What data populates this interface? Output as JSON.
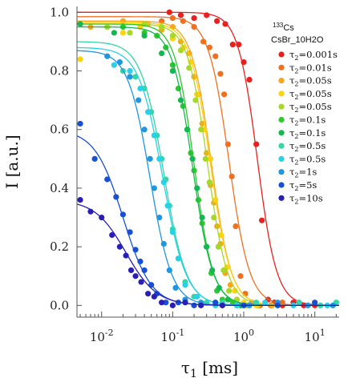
{
  "chart_data": {
    "type": "scatter",
    "xlabel": "τ",
    "xlabel_sub": "1",
    "xlabel_unit": "[ms]",
    "ylabel": "I [a.u.]",
    "xscale": "log",
    "xlim": [
      0.0045,
      22
    ],
    "ylim": [
      -0.04,
      1.02
    ],
    "yticks": [
      {
        "value": 0.0,
        "label": "0.0"
      },
      {
        "value": 0.2,
        "label": "0.2"
      },
      {
        "value": 0.4,
        "label": "0.4"
      },
      {
        "value": 0.6,
        "label": "0.6"
      },
      {
        "value": 0.8,
        "label": "0.8"
      },
      {
        "value": 1.0,
        "label": "1.0"
      }
    ],
    "xticks": [
      {
        "value": 0.01,
        "base": "10",
        "exp": "-2"
      },
      {
        "value": 0.1,
        "base": "10",
        "exp": "-1"
      },
      {
        "value": 1,
        "base": "10",
        "exp": "0"
      },
      {
        "value": 10,
        "base": "10",
        "exp": "1"
      }
    ],
    "legend": {
      "placement": "top-right",
      "isotope_mass": "133",
      "isotope_element": "Cs",
      "sample": "CsBr_10H2O"
    },
    "series": [
      {
        "label": "τ2=0.001s",
        "color": "#e8201e",
        "y0": 1.0,
        "x50": 1.55,
        "n": 3.2,
        "x": [
          0.09,
          0.13,
          0.2,
          0.3,
          0.42,
          0.55,
          0.7,
          0.85,
          1.0,
          1.2,
          1.5,
          1.8,
          2.2,
          2.7,
          3.5,
          5,
          7,
          10
        ],
        "y": [
          1.0,
          0.99,
          0.98,
          0.99,
          0.97,
          0.96,
          0.89,
          0.89,
          0.83,
          0.77,
          0.55,
          0.29,
          0.02,
          0.01,
          0.0,
          0.01,
          0.0,
          0.0
        ]
      },
      {
        "label": "τ2=0.01s",
        "color": "#f07020",
        "y0": 0.985,
        "x50": 0.62,
        "n": 3.0,
        "x": [
          0.07,
          0.1,
          0.14,
          0.2,
          0.27,
          0.33,
          0.4,
          0.47,
          0.53,
          0.6,
          0.68,
          0.77,
          0.9,
          1.05,
          1.3,
          1.7,
          2.4,
          3.5
        ],
        "y": [
          0.97,
          0.98,
          0.97,
          0.95,
          0.9,
          0.88,
          0.85,
          0.79,
          0.72,
          0.55,
          0.44,
          0.27,
          0.1,
          0.04,
          0.01,
          0.0,
          0.0,
          0.01
        ]
      },
      {
        "label": "τ2=0.05s",
        "color": "#f9a51a",
        "y0": 0.97,
        "x50": 0.35,
        "n": 3.1,
        "x": [
          0.007,
          0.012,
          0.02,
          0.045,
          0.07,
          0.1,
          0.13,
          0.17,
          0.2,
          0.23,
          0.26,
          0.3,
          0.34,
          0.38,
          0.42,
          0.47,
          0.55,
          0.65,
          0.8,
          1.1,
          1.6,
          2.5
        ],
        "y": [
          0.95,
          0.95,
          0.97,
          0.96,
          0.94,
          0.95,
          0.9,
          0.86,
          0.78,
          0.72,
          0.62,
          0.52,
          0.41,
          0.35,
          0.27,
          0.21,
          0.11,
          0.07,
          0.02,
          0.0,
          0.0,
          0.0
        ]
      },
      {
        "label": "τ2=0.05s",
        "color": "#fcd211",
        "y0": 0.965,
        "x50": 0.34,
        "n": 3.0,
        "x": [
          0.005,
          0.02,
          0.035,
          0.06,
          0.1,
          0.14,
          0.18,
          0.22,
          0.28,
          0.34,
          0.4,
          0.48,
          0.58,
          0.75,
          1.0,
          1.5
        ],
        "y": [
          0.84,
          0.93,
          0.95,
          0.92,
          0.91,
          0.88,
          0.83,
          0.72,
          0.6,
          0.5,
          0.36,
          0.24,
          0.13,
          0.05,
          0.01,
          0.0
        ]
      },
      {
        "label": "τ2=0.05s",
        "color": "#a6d82a",
        "y0": 0.96,
        "x50": 0.31,
        "n": 3.1,
        "x": [
          0.012,
          0.025,
          0.04,
          0.07,
          0.1,
          0.13,
          0.17,
          0.21,
          0.25,
          0.29,
          0.33,
          0.38,
          0.44,
          0.52,
          0.62,
          0.8,
          1.1
        ],
        "y": [
          0.95,
          0.93,
          0.96,
          0.95,
          0.92,
          0.87,
          0.81,
          0.7,
          0.6,
          0.5,
          0.42,
          0.3,
          0.2,
          0.12,
          0.05,
          0.02,
          0.0
        ]
      },
      {
        "label": "τ2=0.1s",
        "color": "#2ec82e",
        "y0": 0.96,
        "x50": 0.2,
        "n": 3.2,
        "x": [
          0.02,
          0.04,
          0.06,
          0.08,
          0.1,
          0.12,
          0.14,
          0.16,
          0.18,
          0.2,
          0.23,
          0.26,
          0.3,
          0.35,
          0.42,
          0.5,
          0.7,
          1.0
        ],
        "y": [
          0.95,
          0.93,
          0.92,
          0.88,
          0.82,
          0.74,
          0.68,
          0.6,
          0.52,
          0.46,
          0.36,
          0.28,
          0.2,
          0.11,
          0.05,
          0.02,
          0.01,
          0.0
        ]
      },
      {
        "label": "τ2=0.1s",
        "color": "#14b850",
        "y0": 0.95,
        "x50": 0.19,
        "n": 3.0,
        "x": [
          0.005,
          0.015,
          0.04,
          0.07,
          0.1,
          0.13,
          0.16,
          0.19,
          0.22,
          0.26,
          0.3,
          0.36,
          0.45,
          0.6,
          0.9
        ],
        "y": [
          0.96,
          0.93,
          0.92,
          0.86,
          0.8,
          0.7,
          0.6,
          0.5,
          0.4,
          0.3,
          0.2,
          0.12,
          0.06,
          0.02,
          0.0
        ]
      },
      {
        "label": "τ2=0.5s",
        "color": "#33d6a6",
        "y0": 0.9,
        "x50": 0.075,
        "n": 2.7,
        "x": [
          0.02,
          0.03,
          0.04,
          0.05,
          0.06,
          0.07,
          0.08,
          0.09,
          0.1,
          0.12,
          0.15,
          0.2,
          0.3,
          0.5,
          0.8,
          1.5,
          3,
          6,
          12,
          20
        ],
        "y": [
          0.8,
          0.78,
          0.74,
          0.66,
          0.58,
          0.5,
          0.43,
          0.34,
          0.26,
          0.16,
          0.08,
          0.03,
          0.01,
          0.01,
          0.0,
          0.01,
          0.0,
          0.01,
          0.0,
          0.01
        ]
      },
      {
        "label": "τ2=0.5s",
        "color": "#27d2e8",
        "y0": 0.88,
        "x50": 0.072,
        "n": 2.6,
        "x": [
          0.015,
          0.025,
          0.035,
          0.045,
          0.055,
          0.065,
          0.075,
          0.085,
          0.1,
          0.12,
          0.15,
          0.22,
          0.4,
          0.8,
          2,
          5,
          15
        ],
        "y": [
          0.82,
          0.8,
          0.74,
          0.66,
          0.58,
          0.5,
          0.42,
          0.34,
          0.25,
          0.16,
          0.07,
          0.03,
          0.0,
          0.0,
          0.01,
          0.0,
          0.0
        ]
      },
      {
        "label": "τ2=1s",
        "color": "#1e96e0",
        "y0": 0.87,
        "x50": 0.048,
        "n": 2.8,
        "x": [
          0.012,
          0.018,
          0.025,
          0.033,
          0.04,
          0.048,
          0.055,
          0.065,
          0.075,
          0.09,
          0.11,
          0.15,
          0.25,
          0.5,
          1.2,
          3,
          8,
          18
        ],
        "y": [
          0.85,
          0.83,
          0.78,
          0.7,
          0.6,
          0.5,
          0.4,
          0.3,
          0.21,
          0.12,
          0.06,
          0.02,
          0.01,
          0.0,
          0.0,
          0.01,
          0.0,
          0.0
        ]
      },
      {
        "label": "τ2=5s",
        "color": "#1650d6",
        "y0": 0.6,
        "x50": 0.02,
        "n": 2.2,
        "x": [
          0.005,
          0.008,
          0.012,
          0.016,
          0.02,
          0.025,
          0.03,
          0.035,
          0.04,
          0.05,
          0.06,
          0.08,
          0.12,
          0.2,
          0.4,
          1,
          3,
          10
        ],
        "y": [
          0.62,
          0.5,
          0.43,
          0.37,
          0.31,
          0.25,
          0.19,
          0.15,
          0.12,
          0.07,
          0.04,
          0.01,
          0.01,
          0.0,
          0.01,
          0.0,
          0.0,
          0.01
        ]
      },
      {
        "label": "τ2=10s",
        "color": "#2a1fb4",
        "y0": 0.36,
        "x50": 0.022,
        "n": 2.0,
        "x": [
          0.005,
          0.007,
          0.01,
          0.014,
          0.018,
          0.022,
          0.026,
          0.03,
          0.036,
          0.045,
          0.055,
          0.07,
          0.1,
          0.15,
          0.25,
          0.5
        ],
        "y": [
          0.36,
          0.32,
          0.3,
          0.24,
          0.2,
          0.17,
          0.12,
          0.1,
          0.08,
          0.04,
          0.03,
          0.01,
          0.0,
          0.01,
          0.0,
          0.0
        ]
      }
    ]
  }
}
